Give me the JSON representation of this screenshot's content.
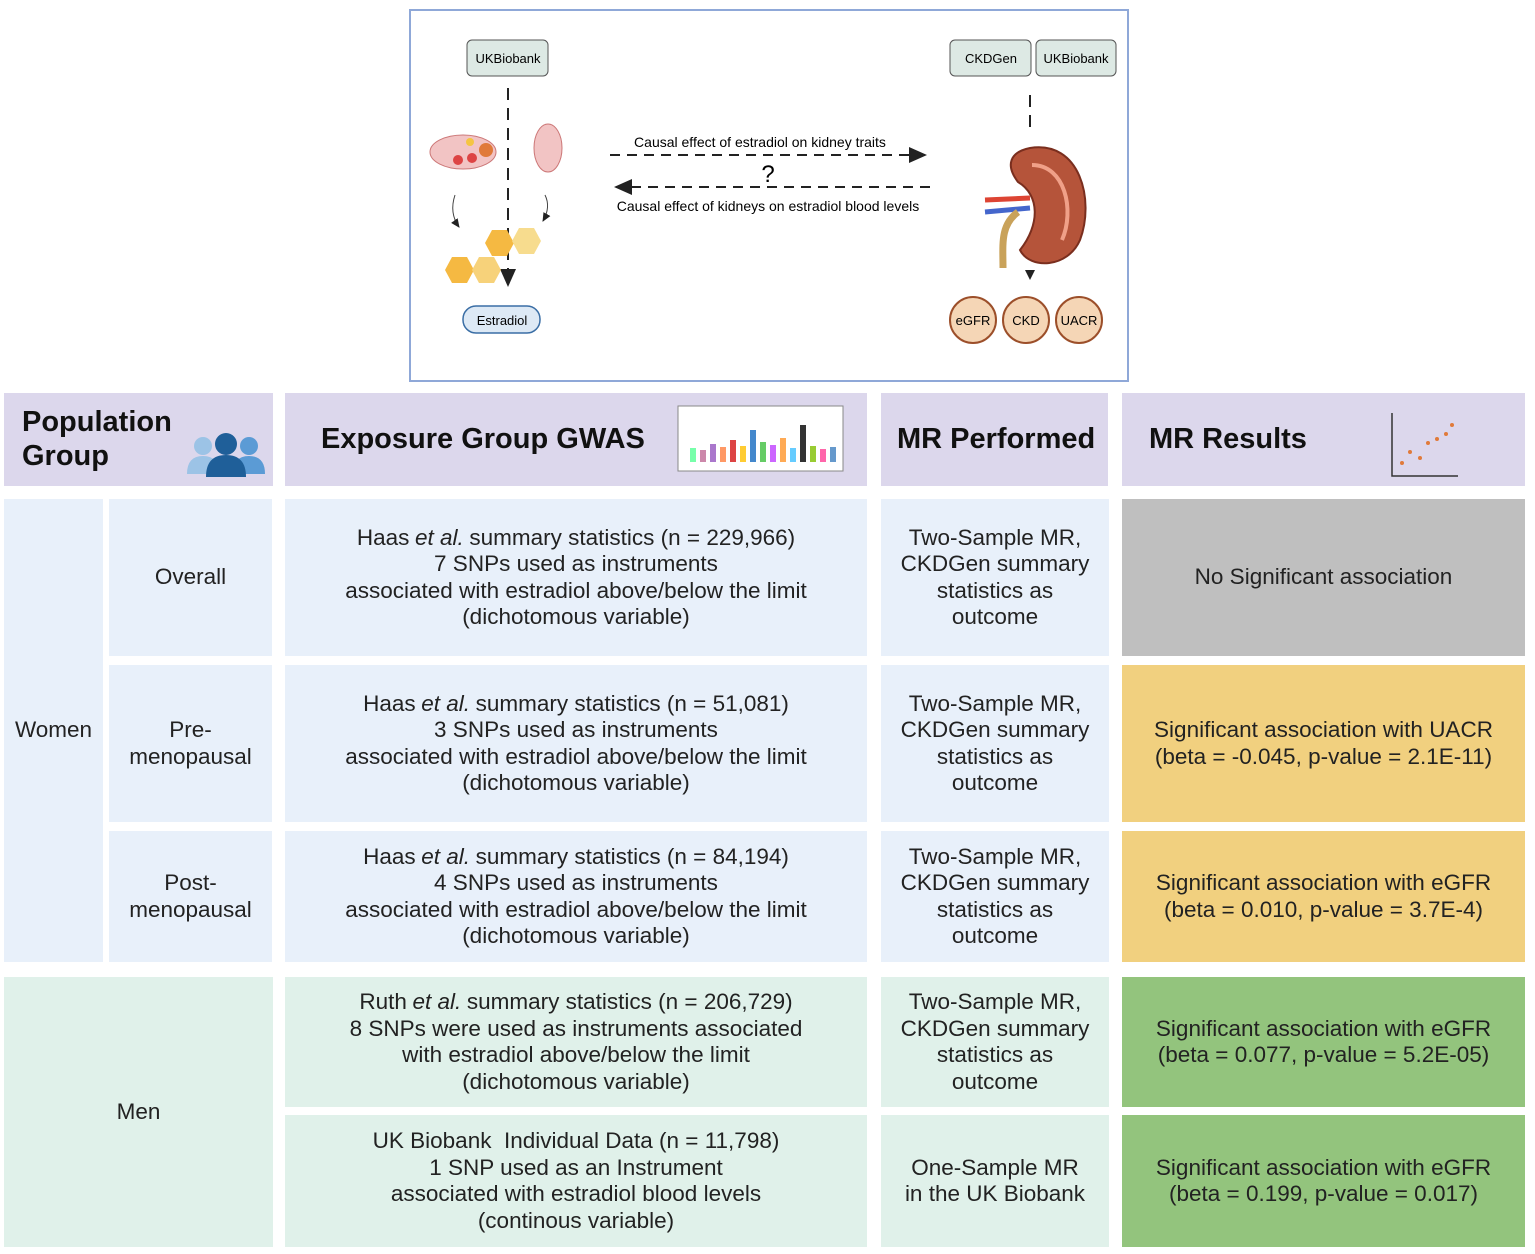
{
  "diagram": {
    "exposure_sources": [
      "UKBiobank"
    ],
    "outcome_sources": [
      "CKDGen",
      "UKBiobank"
    ],
    "forward_label": "Causal effect of estradiol on kidney traits",
    "question": "?",
    "reverse_label": "Causal effect of kidneys on estradiol blood levels",
    "exposure": "Estradiol",
    "outcomes": [
      "eGFR",
      "CKD",
      "UACR"
    ]
  },
  "table": {
    "headers": [
      "Population Group",
      "Exposure Group GWAS",
      "MR Performed",
      "MR Results"
    ],
    "groups": [
      {
        "name": "Women",
        "rows": [
          {
            "subgroup": [
              "Overall"
            ],
            "gwas": [
              [
                "Haas",
                "et al.",
                "summary statistics (n = 229,966)"
              ],
              "7 SNPs used as instruments",
              "associated with estradiol above/below the limit",
              "(dichotomous variable)"
            ],
            "mr": [
              "Two-Sample MR,",
              "CKDGen summary",
              "statistics as",
              "outcome"
            ],
            "result": [
              "No Significant association"
            ],
            "color": "#bfbfbf"
          },
          {
            "subgroup": [
              "Pre-",
              "menopausal"
            ],
            "gwas": [
              [
                "Haas",
                "et al.",
                "summary statistics (n = 51,081)"
              ],
              "3 SNPs used as instruments",
              "associated with estradiol above/below the limit",
              "(dichotomous variable)"
            ],
            "mr": [
              "Two-Sample MR,",
              "CKDGen summary",
              "statistics as",
              "outcome"
            ],
            "result": [
              "Significant association with UACR",
              "(beta = -0.045, p-value = 2.1E-11)"
            ],
            "color": "#f1d07f"
          },
          {
            "subgroup": [
              "Post-",
              "menopausal"
            ],
            "gwas": [
              [
                "Haas",
                "et al.",
                "summary statistics (n = 84,194)"
              ],
              "4 SNPs used as instruments",
              "associated with estradiol above/below the limit",
              "(dichotomous variable)"
            ],
            "mr": [
              "Two-Sample MR,",
              "CKDGen summary",
              "statistics as",
              "outcome"
            ],
            "result": [
              "Significant association with eGFR",
              "(beta = 0.010, p-value = 3.7E-4)"
            ],
            "color": "#f1d07f"
          }
        ]
      },
      {
        "name": "Men",
        "rows": [
          {
            "gwas": [
              [
                "Ruth",
                "et al.",
                "summary statistics (n = 206,729)"
              ],
              "8 SNPs were used as instruments associated",
              "with estradiol above/below the limit",
              "(dichotomous variable)"
            ],
            "mr": [
              "Two-Sample MR,",
              "CKDGen summary",
              "statistics as",
              "outcome"
            ],
            "result": [
              "Significant association with eGFR",
              "(beta = 0.077, p-value = 5.2E-05)"
            ],
            "color": "#93c47d"
          },
          {
            "gwas": [
              "UK Biobank  Individual Data (n = 11,798)",
              "1 SNP used as an Instrument",
              "associated with estradiol blood levels",
              "(continous variable)"
            ],
            "mr": [
              "One-Sample MR",
              "in the UK Biobank"
            ],
            "result": [
              "Significant association with eGFR",
              "(beta = 0.199, p-value = 0.017)"
            ],
            "color": "#93c47d"
          }
        ]
      }
    ]
  }
}
